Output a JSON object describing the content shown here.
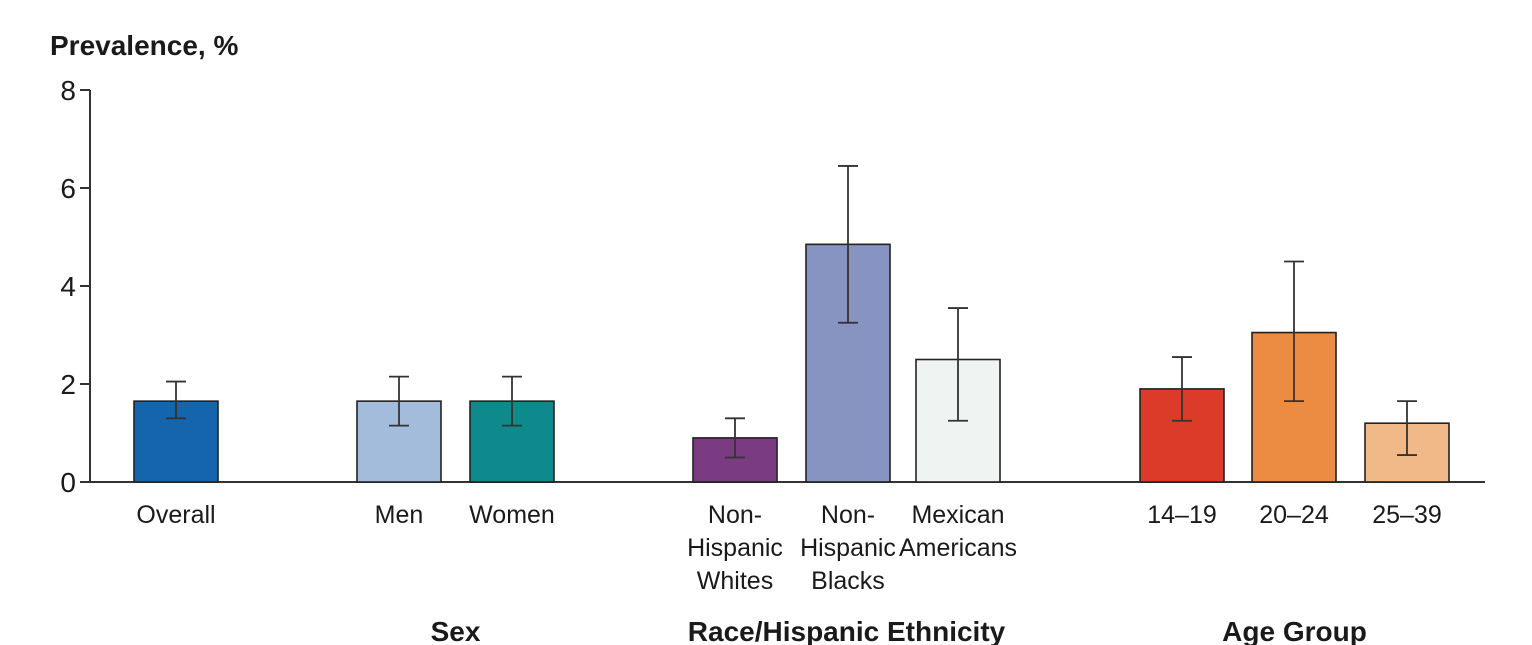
{
  "chart_data": {
    "type": "bar",
    "title": "",
    "ylabel": "Prevalence, %",
    "xlabel": "",
    "ylim": [
      0,
      8
    ],
    "yticks": [
      "0",
      "2",
      "4",
      "6",
      "8"
    ],
    "grid": false,
    "categories": [
      {
        "label_lines": [
          "Overall"
        ],
        "value": 1.65,
        "ci": [
          1.3,
          2.05
        ],
        "color": "#1565ad",
        "group": ""
      },
      {
        "label_lines": [
          "Men"
        ],
        "value": 1.65,
        "ci": [
          1.15,
          2.15
        ],
        "color": "#a3bcdb",
        "group": "Sex"
      },
      {
        "label_lines": [
          "Women"
        ],
        "value": 1.65,
        "ci": [
          1.15,
          2.15
        ],
        "color": "#0e8a8d",
        "group": "Sex"
      },
      {
        "label_lines": [
          "Non-",
          "Hispanic",
          "Whites"
        ],
        "value": 0.9,
        "ci": [
          0.5,
          1.3
        ],
        "color": "#7b3b82",
        "group": "Race/Hispanic Ethnicity"
      },
      {
        "label_lines": [
          "Non-",
          "Hispanic",
          "Blacks"
        ],
        "value": 4.85,
        "ci": [
          3.25,
          6.45
        ],
        "color": "#8793c0",
        "group": "Race/Hispanic Ethnicity"
      },
      {
        "label_lines": [
          "Mexican",
          "Americans"
        ],
        "value": 2.5,
        "ci": [
          1.25,
          3.55
        ],
        "color": "#eff4f2",
        "group": "Race/Hispanic Ethnicity"
      },
      {
        "label_lines": [
          "14–19"
        ],
        "value": 1.9,
        "ci": [
          1.25,
          2.55
        ],
        "color": "#dc3b2a",
        "group": "Age Group"
      },
      {
        "label_lines": [
          "20–24"
        ],
        "value": 3.05,
        "ci": [
          1.65,
          4.5
        ],
        "color": "#ec8b42",
        "group": "Age Group"
      },
      {
        "label_lines": [
          "25–39"
        ],
        "value": 1.2,
        "ci": [
          0.55,
          1.65
        ],
        "color": "#f2b988",
        "group": "Age Group"
      }
    ],
    "groups": [
      {
        "label": "Sex",
        "members": [
          1,
          2
        ]
      },
      {
        "label": "Race/Hispanic Ethnicity",
        "members": [
          3,
          4,
          5
        ]
      },
      {
        "label": "Age Group",
        "members": [
          6,
          7,
          8
        ]
      }
    ]
  }
}
